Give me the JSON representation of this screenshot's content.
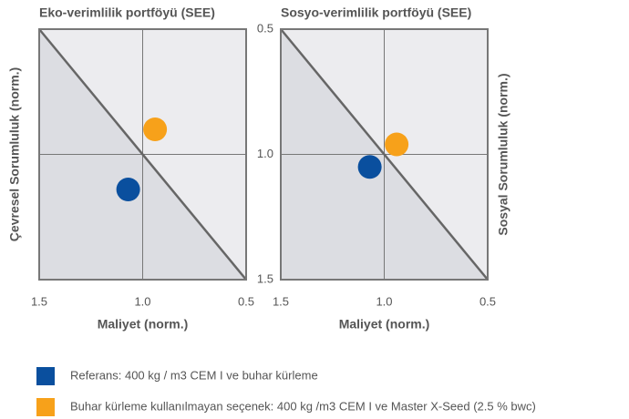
{
  "chart_data": [
    {
      "type": "scatter",
      "title": "Eko-verimlilik portföyü (SEE)",
      "x_label": "Maliyet (norm.)",
      "y_label": "Çevresel Sorumluluk (norm.)",
      "xlim": [
        1.5,
        0.5
      ],
      "ylim": [
        0.5,
        1.5
      ],
      "xticks": [
        1.5,
        {
          "value": 1,
          "label": "1.0"
        },
        0.5
      ],
      "yticks": [
        0.5,
        1,
        1.5
      ],
      "series": [
        {
          "name": "Referans: 400 kg / m3 CEM I ve buhar kürleme",
          "color": "#0a4f9e",
          "x": [
            1.07
          ],
          "values": [
            1.14
          ]
        },
        {
          "name": "Buhar kürleme kullanılmayan seçenek: 400 kg /m3 CEM I ve Master X-Seed (2.5 % bwc)",
          "color": "#f7a11a",
          "x": [
            0.94
          ],
          "values": [
            0.9
          ]
        }
      ]
    },
    {
      "type": "scatter",
      "title": "Sosyo-verimlilik portföyü (SEE)",
      "x_label": "Maliyet (norm.)",
      "y_label": "Sosyal Sorumluluk (norm.)",
      "xlim": [
        1.5,
        0.5
      ],
      "ylim": [
        0.5,
        1.5
      ],
      "xticks": [
        1.5,
        {
          "value": 1,
          "label": "1.0"
        },
        0.5
      ],
      "yticks": [
        0.5,
        {
          "value": 1,
          "label": "1.0"
        },
        1.5
      ],
      "series": [
        {
          "color": "#0a4f9e",
          "x": [
            1.07
          ],
          "values": [
            1.05
          ]
        },
        {
          "color": "#f7a11a",
          "x": [
            0.94
          ],
          "values": [
            0.96
          ]
        }
      ]
    }
  ]
}
